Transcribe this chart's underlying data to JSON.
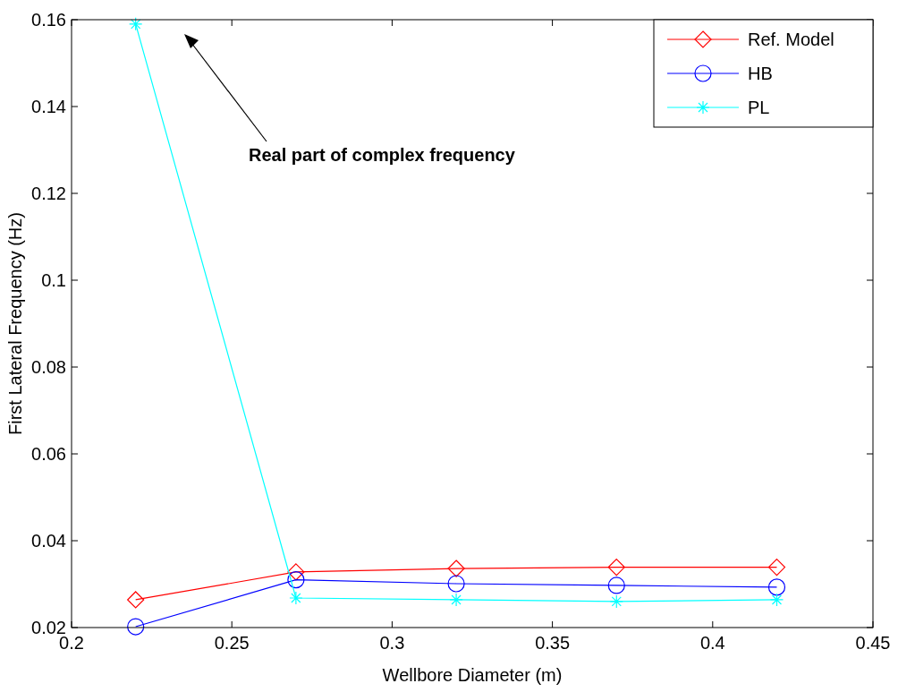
{
  "chart_data": {
    "type": "line",
    "xlabel": "Wellbore Diameter (m)",
    "ylabel": "First Lateral Frequency (Hz)",
    "x": [
      0.22,
      0.27,
      0.32,
      0.37,
      0.42
    ],
    "xlim": [
      0.2,
      0.45
    ],
    "xticks": [
      0.2,
      0.25,
      0.3,
      0.35,
      0.4,
      0.45
    ],
    "ylim": [
      0.02,
      0.16
    ],
    "yticks": [
      0.02,
      0.04,
      0.06,
      0.08,
      0.1,
      0.12,
      0.14,
      0.16
    ],
    "series": [
      {
        "name": "Ref. Model",
        "color": "#ff0000",
        "marker": "diamond",
        "values": [
          0.0264,
          0.0328,
          0.0336,
          0.0339,
          0.0339
        ]
      },
      {
        "name": "HB",
        "color": "#0000ff",
        "marker": "circle",
        "values": [
          0.0202,
          0.031,
          0.0301,
          0.0297,
          0.0293
        ]
      },
      {
        "name": "PL",
        "color": "#00ffff",
        "marker": "cross",
        "values": [
          0.159,
          0.0268,
          0.0264,
          0.026,
          0.0264
        ]
      }
    ],
    "annotations": [
      "Real part of complex frequency"
    ],
    "legend": "top right",
    "grid": false
  }
}
